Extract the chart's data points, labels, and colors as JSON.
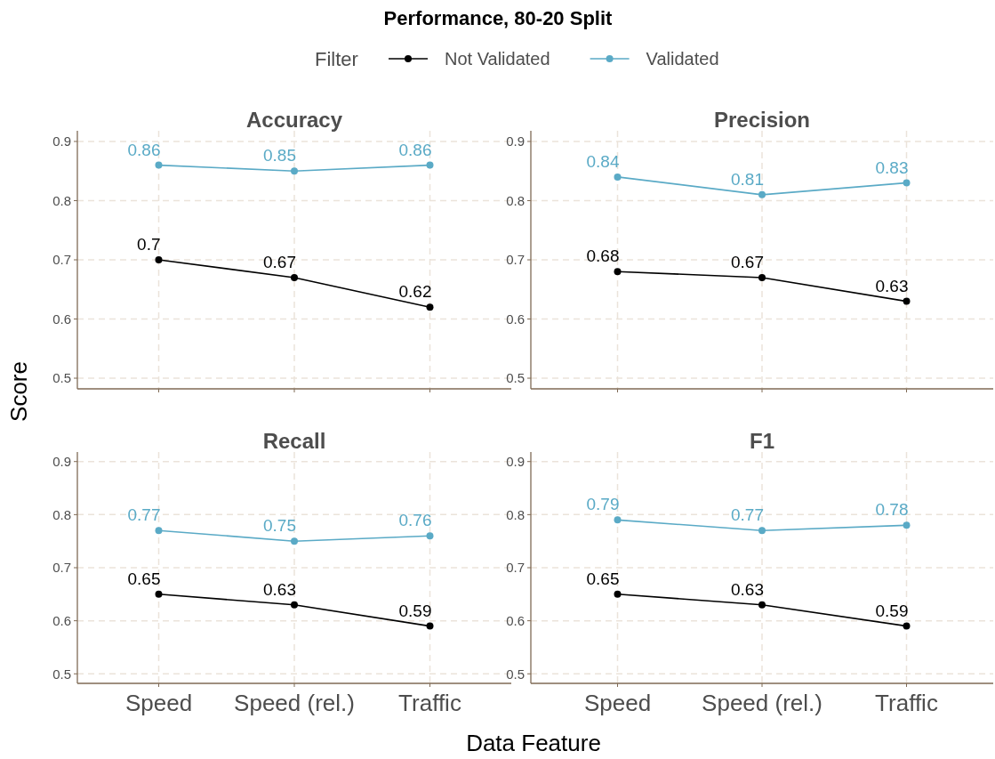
{
  "chart_data": [
    {
      "type": "line",
      "title": "Performance, 80-20 Split",
      "subtitle": "Accuracy",
      "ylabel": "Score",
      "legend_title": "Filter",
      "legend": "top",
      "categories": [
        null,
        null,
        null
      ],
      "ylim": [
        0.482,
        0.918
      ],
      "yticks": [
        0.5,
        0.6,
        0.7,
        0.8,
        0.9
      ],
      "grid": true,
      "marker": "circle",
      "data_labels": true,
      "tick_labels": "y",
      "series": [
        {
          "name": "Not Validated",
          "color": "#000000",
          "values": [
            0.7,
            0.67,
            0.62
          ]
        },
        {
          "name": "Validated",
          "color": "#5aaac6",
          "values": [
            0.86,
            0.85,
            0.86
          ]
        }
      ]
    },
    {
      "type": "line",
      "subtitle": "Precision",
      "categories": [
        null,
        null,
        null
      ],
      "ylim": [
        0.482,
        0.918
      ],
      "yticks": [
        0.5,
        0.6,
        0.7,
        0.8,
        0.9
      ],
      "grid": true,
      "marker": "circle",
      "data_labels": true,
      "tick_labels": "y",
      "series": [
        {
          "color": "#000000",
          "values": [
            0.68,
            0.67,
            0.63
          ]
        },
        {
          "color": "#5aaac6",
          "values": [
            0.84,
            0.81,
            0.83
          ]
        }
      ]
    },
    {
      "type": "line",
      "subtitle": "Recall",
      "xlabel": "Data Feature",
      "categories": [
        "Speed",
        "Speed (rel.)",
        "Traffic"
      ],
      "ylim": [
        0.482,
        0.918
      ],
      "yticks": [
        0.5,
        0.6,
        0.7,
        0.8,
        0.9
      ],
      "grid": true,
      "marker": "circle",
      "data_labels": true,
      "series": [
        {
          "color": "#000000",
          "values": [
            0.65,
            0.63,
            0.59
          ]
        },
        {
          "color": "#5aaac6",
          "values": [
            0.77,
            0.75,
            0.76
          ]
        }
      ]
    },
    {
      "type": "line",
      "subtitle": "F1",
      "categories": [
        "Speed",
        "Speed (rel.)",
        "Traffic"
      ],
      "ylim": [
        0.482,
        0.918
      ],
      "yticks": [
        0.5,
        0.6,
        0.7,
        0.8,
        0.9
      ],
      "grid": true,
      "marker": "circle",
      "data_labels": true,
      "series": [
        {
          "color": "#000000",
          "values": [
            0.65,
            0.63,
            0.59
          ]
        },
        {
          "color": "#5aaac6",
          "values": [
            0.79,
            0.77,
            0.78
          ]
        }
      ]
    }
  ]
}
